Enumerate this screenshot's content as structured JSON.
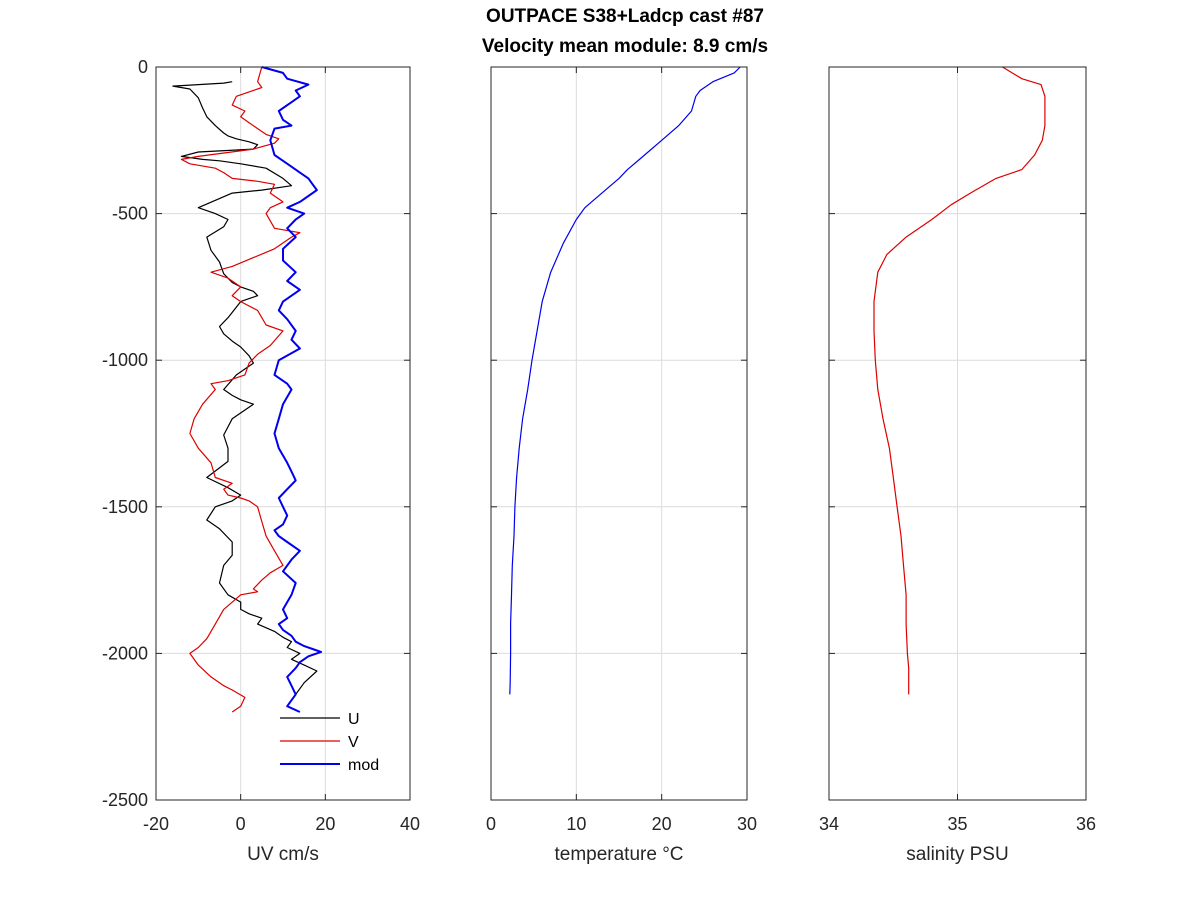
{
  "title_lines": [
    "OUTPACE S38+Ladcp cast #87",
    "Velocity mean module:  8.9 cm/s"
  ],
  "chart_data": [
    {
      "type": "line",
      "panel": "velocity",
      "xlabel": "UV cm/s",
      "ylabel": "",
      "xlim": [
        -20,
        40
      ],
      "ylim": [
        -2500,
        0
      ],
      "xticks": [
        -20,
        0,
        20,
        40
      ],
      "yticks": [
        0,
        -500,
        -1000,
        -1500,
        -2000,
        -2500
      ],
      "grid": true,
      "legend": "bottom-right",
      "series": [
        {
          "name": "U",
          "color": "#000000",
          "x": [
            -2,
            -4,
            -16,
            -12,
            -10,
            -9,
            -8,
            -6,
            -4,
            -3,
            -1,
            2,
            4,
            3,
            -10,
            -14,
            -9,
            -5,
            0,
            6,
            10,
            12,
            5,
            -2,
            -10,
            -6,
            -3,
            -4,
            -8,
            -7,
            -5,
            -4,
            -2,
            0,
            3,
            4,
            2,
            0,
            -3,
            -5,
            -4,
            -2,
            0,
            2,
            3,
            -1,
            -4,
            -2,
            0,
            3,
            -2,
            -4,
            -3,
            -3,
            -8,
            -3,
            0,
            -2,
            -6,
            -8,
            -5,
            -2,
            -2,
            -4,
            -5,
            -3,
            0,
            0,
            2,
            5,
            4,
            8,
            10,
            12,
            11,
            14,
            12,
            15,
            18,
            15,
            13
          ],
          "y": [
            -50,
            -55,
            -65,
            -75,
            -105,
            -140,
            -170,
            -200,
            -225,
            -235,
            -245,
            -255,
            -265,
            -280,
            -290,
            -305,
            -315,
            -320,
            -330,
            -345,
            -380,
            -405,
            -420,
            -430,
            -480,
            -500,
            -520,
            -545,
            -580,
            -625,
            -665,
            -705,
            -735,
            -750,
            -765,
            -780,
            -790,
            -800,
            -855,
            -885,
            -910,
            -935,
            -955,
            -985,
            -1010,
            -1050,
            -1100,
            -1120,
            -1135,
            -1150,
            -1200,
            -1255,
            -1300,
            -1345,
            -1400,
            -1435,
            -1460,
            -1480,
            -1500,
            -1545,
            -1575,
            -1620,
            -1665,
            -1700,
            -1760,
            -1800,
            -1825,
            -1850,
            -1865,
            -1880,
            -1900,
            -1925,
            -1945,
            -1960,
            -1980,
            -2000,
            -2020,
            -2040,
            -2060,
            -2100,
            -2140
          ]
        },
        {
          "name": "V",
          "color": "#dd0000",
          "x": [
            5,
            4,
            5,
            -1,
            -2,
            1,
            0,
            2,
            4,
            6,
            9,
            8,
            3,
            -10,
            -14,
            -12,
            -6,
            -4,
            -2,
            4,
            8,
            7,
            10,
            7,
            6,
            8,
            14,
            12,
            8,
            3,
            -2,
            -7,
            -3,
            0,
            -2,
            0,
            4,
            6,
            10,
            7,
            4,
            2,
            1,
            -3,
            -7,
            -6,
            -9,
            -11,
            -12,
            -10,
            -7,
            -6,
            -2,
            -4,
            -3,
            0,
            2,
            4,
            5,
            6,
            8,
            10,
            7,
            5,
            3,
            4,
            0,
            -4,
            -6,
            -8,
            -10,
            -12,
            -10,
            -7,
            -5,
            -4,
            -2,
            1,
            0,
            -2
          ],
          "y": [
            0,
            -50,
            -70,
            -100,
            -130,
            -150,
            -170,
            -190,
            -210,
            -230,
            -245,
            -260,
            -280,
            -305,
            -315,
            -330,
            -345,
            -360,
            -380,
            -390,
            -400,
            -430,
            -460,
            -480,
            -500,
            -550,
            -565,
            -580,
            -620,
            -650,
            -680,
            -700,
            -720,
            -750,
            -780,
            -800,
            -830,
            -880,
            -900,
            -950,
            -980,
            -1010,
            -1050,
            -1070,
            -1080,
            -1100,
            -1150,
            -1200,
            -1250,
            -1300,
            -1350,
            -1400,
            -1420,
            -1440,
            -1460,
            -1470,
            -1480,
            -1500,
            -1550,
            -1600,
            -1650,
            -1700,
            -1725,
            -1750,
            -1780,
            -1790,
            -1800,
            -1850,
            -1900,
            -1950,
            -1980,
            -2000,
            -2040,
            -2080,
            -2100,
            -2110,
            -2125,
            -2150,
            -2180,
            -2200
          ]
        },
        {
          "name": "mod",
          "color": "#0000ee",
          "x": [
            5,
            10,
            11,
            16,
            13,
            14,
            12,
            9,
            10,
            12,
            8,
            7,
            8,
            10,
            12,
            14,
            16,
            17,
            18,
            16,
            14,
            11,
            15,
            13,
            11,
            13,
            10,
            10,
            13,
            11,
            14,
            12,
            10,
            9,
            11,
            13,
            12,
            14,
            9,
            8,
            11,
            12,
            10,
            9,
            8,
            9,
            11,
            12,
            13,
            11,
            9,
            10,
            11,
            10,
            8,
            9,
            11,
            14,
            12,
            10,
            13,
            12,
            10,
            11,
            9,
            10,
            12,
            13,
            15,
            17,
            19,
            16,
            14,
            13,
            11,
            12,
            13,
            11,
            14
          ],
          "y": [
            0,
            -20,
            -40,
            -60,
            -80,
            -100,
            -120,
            -150,
            -180,
            -200,
            -210,
            -250,
            -300,
            -320,
            -340,
            -360,
            -380,
            -400,
            -420,
            -440,
            -460,
            -480,
            -500,
            -520,
            -550,
            -580,
            -620,
            -660,
            -700,
            -730,
            -760,
            -780,
            -800,
            -830,
            -860,
            -900,
            -930,
            -960,
            -1000,
            -1050,
            -1080,
            -1100,
            -1150,
            -1200,
            -1250,
            -1300,
            -1350,
            -1380,
            -1410,
            -1440,
            -1470,
            -1500,
            -1530,
            -1560,
            -1580,
            -1600,
            -1620,
            -1650,
            -1680,
            -1720,
            -1760,
            -1800,
            -1850,
            -1880,
            -1900,
            -1920,
            -1940,
            -1960,
            -1975,
            -1985,
            -1995,
            -2010,
            -2030,
            -2050,
            -2080,
            -2110,
            -2140,
            -2180,
            -2200
          ]
        }
      ]
    },
    {
      "type": "line",
      "panel": "temperature",
      "xlabel": "temperature °C",
      "ylabel": "",
      "xlim": [
        0,
        30
      ],
      "ylim": [
        -2500,
        0
      ],
      "xticks": [
        0,
        10,
        20,
        30
      ],
      "grid": true,
      "series": [
        {
          "name": "",
          "color": "#0000ee",
          "x": [
            29.2,
            28.5,
            26,
            24.5,
            24,
            23.5,
            22,
            20,
            18,
            16,
            15,
            13,
            11,
            10,
            8.5,
            7,
            6,
            5.4,
            4.8,
            4.3,
            3.7,
            3.3,
            3.0,
            2.8,
            2.7,
            2.5,
            2.4,
            2.3,
            2.3,
            2.25,
            2.2
          ],
          "y": [
            0,
            -20,
            -50,
            -80,
            -100,
            -150,
            -200,
            -250,
            -300,
            -350,
            -380,
            -430,
            -480,
            -520,
            -600,
            -700,
            -800,
            -900,
            -1000,
            -1100,
            -1200,
            -1300,
            -1400,
            -1500,
            -1600,
            -1700,
            -1800,
            -1900,
            -2000,
            -2100,
            -2140
          ]
        }
      ]
    },
    {
      "type": "line",
      "panel": "salinity",
      "xlabel": "salinity PSU",
      "ylabel": "",
      "xlim": [
        34,
        36
      ],
      "ylim": [
        -2500,
        0
      ],
      "xticks": [
        34,
        35,
        36
      ],
      "grid": true,
      "series": [
        {
          "name": "",
          "color": "#dd0000",
          "x": [
            35.35,
            35.5,
            35.65,
            35.68,
            35.68,
            35.66,
            35.6,
            35.5,
            35.3,
            35.1,
            34.95,
            34.8,
            34.6,
            34.45,
            34.38,
            34.35,
            34.35,
            34.36,
            34.38,
            34.42,
            34.47,
            34.5,
            34.53,
            34.56,
            34.58,
            34.6,
            34.6,
            34.61,
            34.62,
            34.62,
            34.62
          ],
          "y": [
            0,
            -40,
            -60,
            -100,
            -200,
            -250,
            -300,
            -350,
            -380,
            -430,
            -470,
            -520,
            -580,
            -640,
            -700,
            -800,
            -900,
            -1000,
            -1100,
            -1200,
            -1300,
            -1400,
            -1500,
            -1600,
            -1700,
            -1800,
            -1900,
            -2000,
            -2050,
            -2100,
            -2140
          ]
        }
      ]
    }
  ]
}
